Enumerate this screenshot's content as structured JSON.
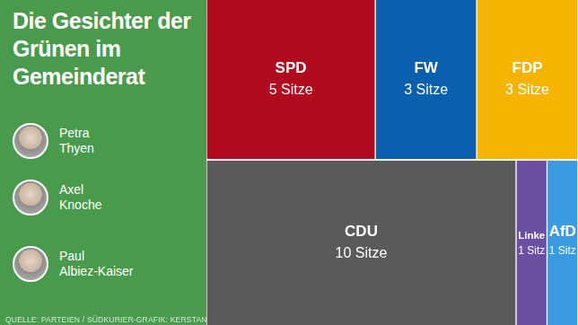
{
  "title": "Die Gesichter der Grünen im Gemeinderat",
  "people": [
    "Petra Thyen",
    "Axel Knoche",
    "Paul Albiez-Kaiser"
  ],
  "source": "QUELLE: PARTEIEN / SÜDKURIER-GRAFIK: KERSTAN",
  "chart_data": {
    "type": "bar",
    "orientation": "horizontal",
    "stacked": true,
    "categories": [
      "SPD",
      "FW",
      "FDP",
      "CDU",
      "Linke",
      "AfD"
    ],
    "values": [
      5,
      3,
      3,
      10,
      1,
      1
    ],
    "value_labels": [
      "5 Sitze",
      "3 Sitze",
      "3 Sitze",
      "10 Sitze",
      "1 Sitz",
      "1 Sitz"
    ],
    "colors": [
      "#b10b20",
      "#0a5fae",
      "#f4b400",
      "#5a5a5c",
      "#6a4fa2",
      "#3a9be0"
    ],
    "data_labels": true,
    "tick_labels": false,
    "grid": false
  }
}
